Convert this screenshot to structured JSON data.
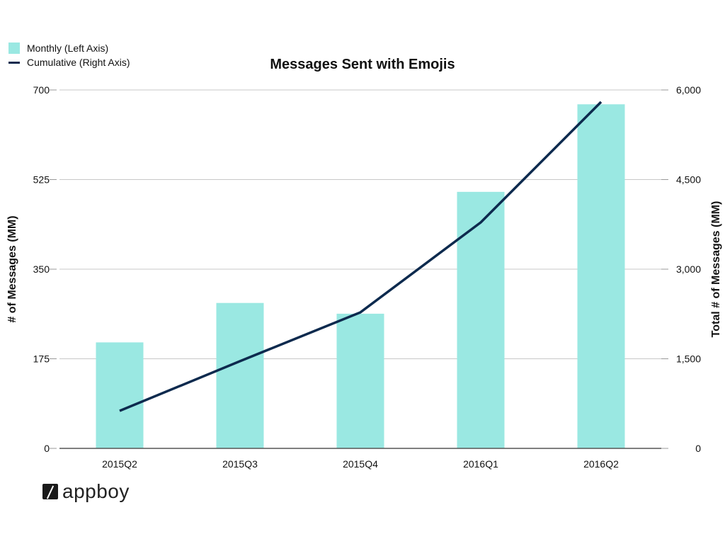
{
  "chart_data": {
    "type": "bar",
    "title": "Messages Sent with Emojis",
    "xlabel": "",
    "ylabel": "# of Messages (MM)",
    "ylabel_right": "Total # of Messages (MM)",
    "categories": [
      "2015Q2",
      "2015Q3",
      "2015Q4",
      "2016Q1",
      "2016Q2"
    ],
    "series": [
      {
        "name": "Monthly (Left Axis)",
        "type": "bar",
        "axis": "left",
        "color": "#9AE8E2",
        "values": [
          207,
          284,
          263,
          501,
          672
        ]
      },
      {
        "name": "Cumulative (Right Axis)",
        "type": "line",
        "axis": "right",
        "color": "#0D2A4E",
        "values": [
          628,
          1460,
          2277,
          3783,
          5800
        ]
      }
    ],
    "ylim": [
      0,
      700
    ],
    "ylim_right": [
      0,
      6000
    ],
    "yticks": [
      "0",
      "175",
      "350",
      "525",
      "700"
    ],
    "yticks_right": [
      "0",
      "1,500",
      "3,000",
      "4,500",
      "6,000"
    ],
    "grid": true,
    "legend_position": "top-left"
  },
  "legend": {
    "monthly_label": "Monthly (Left Axis)",
    "cumulative_label": "Cumulative (Right Axis)"
  },
  "logo": {
    "text": "appboy"
  },
  "colors": {
    "bar": "#9AE8E2",
    "line": "#0D2A4E",
    "grid": "#c8c8c8",
    "axis": "#555555"
  }
}
